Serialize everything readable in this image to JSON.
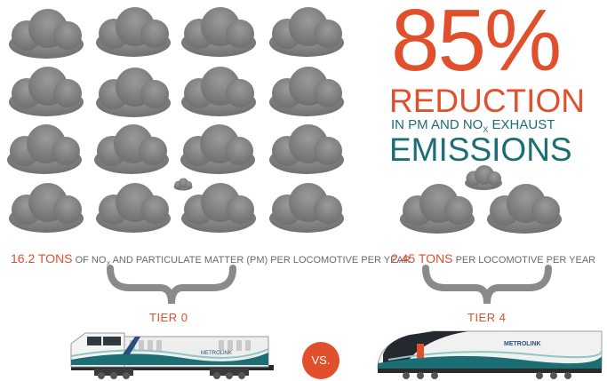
{
  "headline": {
    "percent": "85%",
    "reduction": "REDUCTION",
    "sub_in": "IN PM AND NO",
    "sub_x": "X",
    "sub_exhaust": "EXHAUST",
    "emissions": "EMISSIONS"
  },
  "left": {
    "amount": "16.2 TONS",
    "of": "OF NO",
    "x": "X",
    "rest": "AND PARTICULATE MATTER (PM) PER LOCOMOTIVE PER YEAR",
    "tier": "TIER 0",
    "train_brand": "METROLINK"
  },
  "right": {
    "amount": "2.45 TONS",
    "rest": "PER LOCOMOTIVE PER YEAR",
    "tier": "TIER 4",
    "train_brand": "METROLINK"
  },
  "vs": "VS.",
  "colors": {
    "orange": "#e0502c",
    "teal": "#1b6e73",
    "cloud": "#7a7a7a"
  }
}
